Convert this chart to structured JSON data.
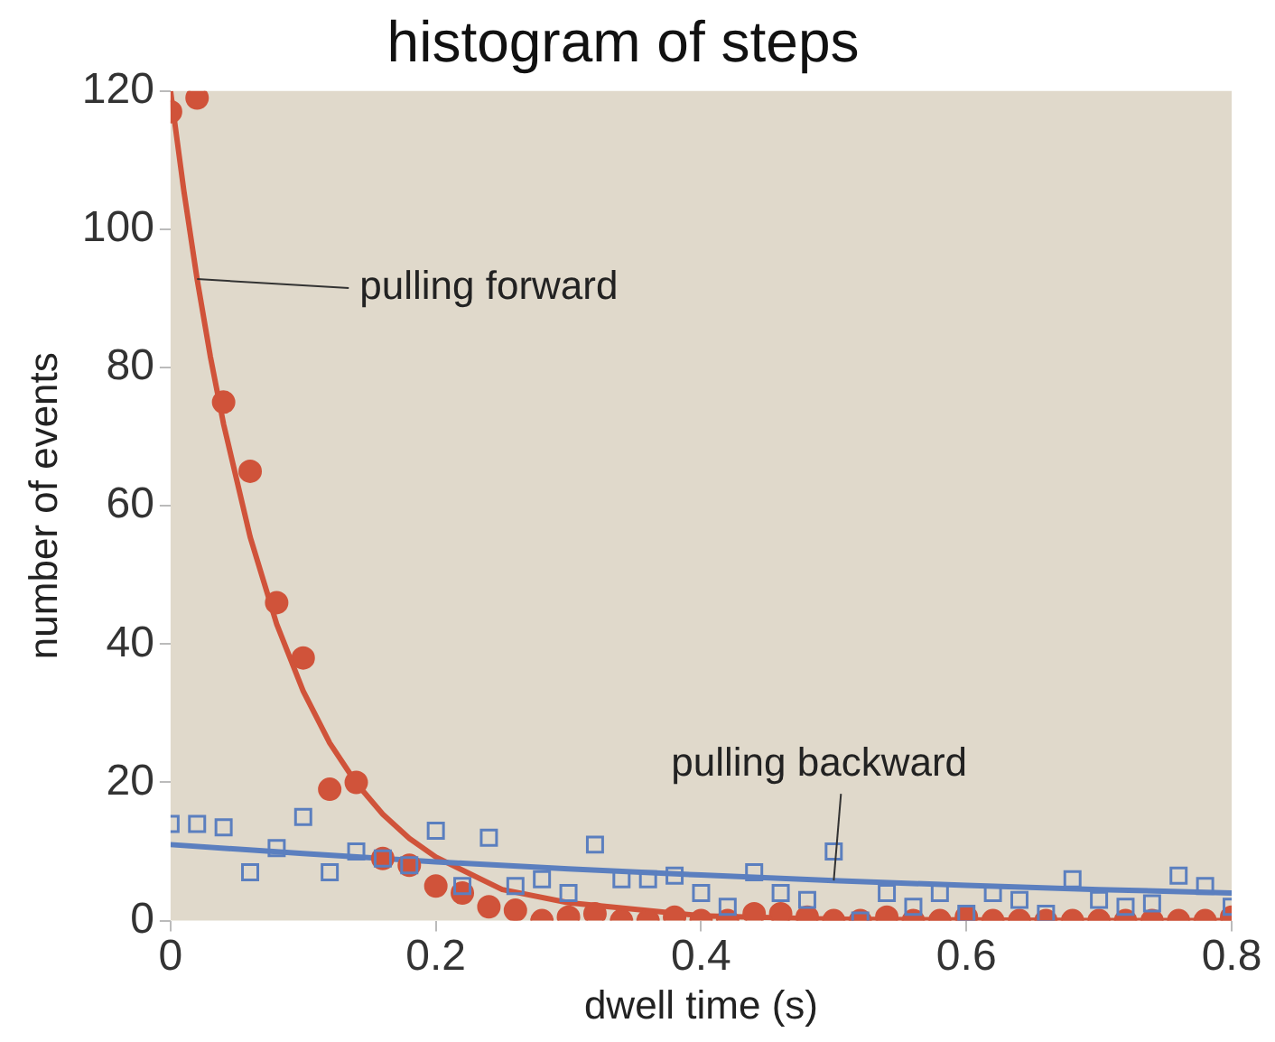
{
  "chart_data": {
    "type": "scatter",
    "title": "histogram of steps",
    "xlabel": "dwell time (s)",
    "ylabel": "number of events",
    "xlim": [
      0,
      0.8
    ],
    "ylim": [
      0,
      120
    ],
    "xticks": [
      0,
      0.2,
      0.4,
      0.6,
      0.8
    ],
    "yticks": [
      0,
      20,
      40,
      60,
      80,
      100,
      120
    ],
    "grid": false,
    "legend": false,
    "series": [
      {
        "type": "line",
        "color": "#5b7fbf",
        "marker": "none",
        "line_style": "solid",
        "x": [
          0,
          0.1,
          0.2,
          0.3,
          0.4,
          0.5,
          0.6,
          0.7,
          0.8
        ],
        "values": [
          11,
          9.7,
          8.5,
          7.5,
          6.6,
          5.8,
          5.1,
          4.5,
          4
        ]
      },
      {
        "type": "scatter",
        "color": "#5b7fbf",
        "marker": "square",
        "x": [
          0,
          0.02,
          0.04,
          0.06,
          0.08,
          0.1,
          0.12,
          0.14,
          0.16,
          0.18,
          0.2,
          0.22,
          0.24,
          0.26,
          0.28,
          0.3,
          0.32,
          0.34,
          0.36,
          0.38,
          0.4,
          0.42,
          0.44,
          0.46,
          0.48,
          0.5,
          0.52,
          0.54,
          0.56,
          0.58,
          0.6,
          0.62,
          0.64,
          0.66,
          0.68,
          0.7,
          0.72,
          0.74,
          0.76,
          0.78,
          0.8
        ],
        "values": [
          14,
          14,
          13.5,
          7,
          10.5,
          15,
          7,
          10,
          9,
          8,
          13,
          5,
          12,
          5,
          6,
          4,
          11,
          6,
          6,
          6.5,
          4,
          2,
          7,
          4,
          3,
          10,
          0,
          4,
          2,
          4,
          1,
          4,
          3,
          1,
          6,
          3,
          2,
          2.5,
          6.5,
          5,
          2
        ]
      },
      {
        "type": "line",
        "color": "#d0533a",
        "marker": "none",
        "line_style": "solid",
        "x": [
          0,
          0.01,
          0.02,
          0.03,
          0.04,
          0.06,
          0.08,
          0.1,
          0.12,
          0.14,
          0.16,
          0.18,
          0.2,
          0.25,
          0.3,
          0.4,
          0.5,
          0.6,
          0.7,
          0.8
        ],
        "values": [
          120,
          105.6,
          92.8,
          81.6,
          71.8,
          55.5,
          42.9,
          33.2,
          25.7,
          19.9,
          15.4,
          11.9,
          9.2,
          4.5,
          2.6,
          0.7,
          0.2,
          0.1,
          0,
          0
        ]
      },
      {
        "type": "scatter",
        "color": "#d0533a",
        "marker": "circle",
        "x": [
          0,
          0.02,
          0.04,
          0.06,
          0.08,
          0.1,
          0.12,
          0.14,
          0.16,
          0.18,
          0.2,
          0.22,
          0.24,
          0.26,
          0.28,
          0.3,
          0.32,
          0.34,
          0.36,
          0.38,
          0.4,
          0.42,
          0.44,
          0.46,
          0.48,
          0.5,
          0.52,
          0.54,
          0.56,
          0.58,
          0.6,
          0.62,
          0.64,
          0.66,
          0.68,
          0.7,
          0.72,
          0.74,
          0.76,
          0.78,
          0.8
        ],
        "values": [
          117,
          119,
          75,
          65,
          46,
          38,
          19,
          20,
          9,
          8,
          5,
          4,
          2,
          1.5,
          0,
          0.5,
          1,
          0,
          0,
          0.5,
          0,
          0,
          1,
          1,
          0.5,
          0,
          0,
          0.5,
          0,
          0,
          0.5,
          0,
          0,
          0,
          0,
          0,
          0,
          0,
          0,
          0,
          0.5
        ]
      }
    ],
    "annotations": [
      {
        "text": "pulling forward",
        "x": 0.02,
        "y": 92.8
      },
      {
        "text": "pulling backward",
        "x": 0.5,
        "y": 5.8
      }
    ]
  }
}
